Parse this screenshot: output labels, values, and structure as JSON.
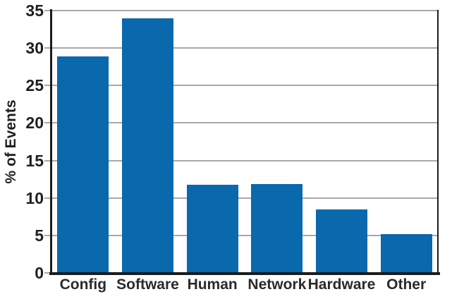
{
  "chart_data": {
    "type": "bar",
    "title": "",
    "categories": [
      "Config",
      "Software",
      "Human",
      "Network",
      "Hardware",
      "Other"
    ],
    "values": [
      28.9,
      34.0,
      11.8,
      11.9,
      8.5,
      5.2
    ],
    "xlabel": "",
    "ylabel": "% of Events",
    "ylim": [
      0,
      35
    ],
    "yticks": [
      0,
      5,
      10,
      15,
      20,
      25,
      30,
      35
    ],
    "grid": "horizontal",
    "legend": "none",
    "colors": {
      "bar": "#0a68ac",
      "axis": "#1c1c1c",
      "gridline": "#a8a8a8",
      "text": "#2a2a2a",
      "background": "#ffffff"
    }
  }
}
